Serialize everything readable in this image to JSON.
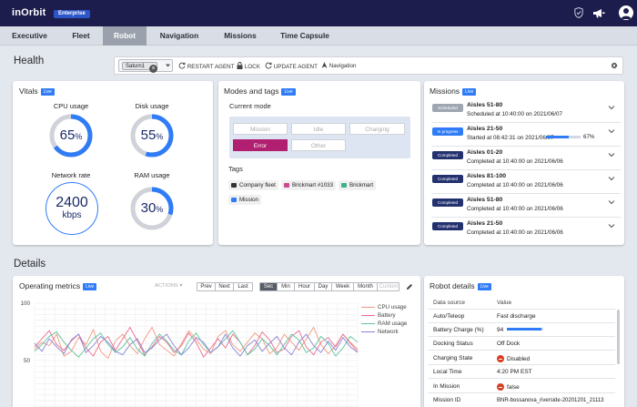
{
  "app": {
    "logo": "inOrbit",
    "edition": "Enterprise"
  },
  "topbar_icons": [
    "shield-icon",
    "megaphone-icon",
    "user-avatar-icon"
  ],
  "tabs": [
    {
      "label": "Executive",
      "active": false
    },
    {
      "label": "Fleet",
      "active": false
    },
    {
      "label": "Robot",
      "active": true
    },
    {
      "label": "Navigation",
      "active": false
    },
    {
      "label": "Missions",
      "active": false
    },
    {
      "label": "Time Capsule",
      "active": false
    }
  ],
  "health": {
    "heading": "Health"
  },
  "toolbar": {
    "robot_chip": "Saturn1",
    "restart_label": "RESTART AGENT",
    "lock_label": "LOCK",
    "update_label": "UPDATE AGENT",
    "navigation_label": "Navigation"
  },
  "vitals": {
    "title": "Vitals",
    "live": "Live",
    "cpu_label": "CPU usage",
    "cpu_value": "65",
    "cpu_percent": 65,
    "disk_label": "Disk usage",
    "disk_value": "55",
    "disk_percent": 55,
    "network_label": "Network rate",
    "network_value": "2400",
    "network_unit": "kbps",
    "ram_label": "RAM usage",
    "ram_value": "30",
    "ram_percent": 30,
    "percent_sign": "%"
  },
  "modes": {
    "title": "Modes and tags",
    "live": "Live",
    "current_mode_label": "Current mode",
    "buttons": [
      {
        "label": "Mission",
        "selected": false
      },
      {
        "label": "Idle",
        "selected": false
      },
      {
        "label": "Charging",
        "selected": false
      },
      {
        "label": "Error",
        "selected": true
      },
      {
        "label": "Other",
        "selected": false
      }
    ],
    "tags_label": "Tags",
    "tags": [
      {
        "label": "Company fleet",
        "icon": "car-icon"
      },
      {
        "label": "Brickmart #1033",
        "icon": "store-icon"
      },
      {
        "label": "Brickmart",
        "icon": "tag-icon"
      },
      {
        "label": "Mission",
        "icon": "robot-icon"
      }
    ]
  },
  "missions": {
    "title": "Missions",
    "live": "Live",
    "items": [
      {
        "status": "Scheduled",
        "name": "Aisles 51-80",
        "time": "Scheduled at 10:40:00 on 2021/06/07",
        "color": "#9fa6b2"
      },
      {
        "status": "In progress",
        "name": "Aisles 21-50",
        "time": "Started at 08:42:31 on 2021/06/07",
        "color": "#2f7cf6",
        "progress": 67,
        "progress_label": "67%"
      },
      {
        "status": "Completed",
        "name": "Aisles 01-20",
        "time": "Completed at 10:40:00 on 2021/06/06",
        "color": "#23316f"
      },
      {
        "status": "Completed",
        "name": "Aisles 81-100",
        "time": "Completed at 10:40:00 on 2021/06/06",
        "color": "#23316f"
      },
      {
        "status": "Completed",
        "name": "Aisles 51-80",
        "time": "Completed at 10:40:00 on 2021/06/06",
        "color": "#23316f"
      },
      {
        "status": "Completed",
        "name": "Aisles 21-50",
        "time": "Completed at 10:40:00 on 2021/06/06",
        "color": "#23316f"
      }
    ]
  },
  "details": {
    "heading": "Details"
  },
  "metrics": {
    "title": "Operating metrics",
    "live": "Live",
    "actions_label": "ACTIONS",
    "nav": [
      "Prev",
      "Next",
      "Last"
    ],
    "ranges": [
      {
        "label": "Sec",
        "selected": true,
        "disabled": false
      },
      {
        "label": "Min",
        "selected": false,
        "disabled": false
      },
      {
        "label": "Hour",
        "selected": false,
        "disabled": false
      },
      {
        "label": "Day",
        "selected": false,
        "disabled": false
      },
      {
        "label": "Week",
        "selected": false,
        "disabled": false
      },
      {
        "label": "Month",
        "selected": false,
        "disabled": false
      },
      {
        "label": "Custom",
        "selected": false,
        "disabled": true
      }
    ]
  },
  "chart_data": {
    "type": "line",
    "ylim": [
      0,
      100
    ],
    "y_ticks": [
      100,
      50
    ],
    "legend_position": "top-right",
    "series": [
      {
        "name": "CPU usage",
        "color": "#f09a82",
        "values": [
          60,
          66,
          63,
          73,
          54,
          58,
          70,
          64,
          77,
          58,
          52,
          67,
          73,
          63,
          56,
          69,
          79,
          64,
          59,
          54,
          65,
          76,
          69,
          60,
          56,
          71,
          76,
          64,
          58,
          66,
          74,
          69,
          56,
          61,
          73,
          66,
          59,
          69,
          79,
          64,
          56,
          63,
          73,
          66,
          60
        ]
      },
      {
        "name": "Battery",
        "color": "#ea6d8f",
        "values": [
          62,
          69,
          76,
          64,
          59,
          67,
          73,
          61,
          54,
          66,
          71,
          59,
          69,
          79,
          67,
          55,
          62,
          71,
          66,
          57,
          63,
          74,
          66,
          53,
          61,
          69,
          61,
          73,
          66,
          55,
          63,
          75,
          68,
          57,
          60,
          71,
          76,
          62,
          55,
          66,
          70,
          62,
          73,
          65,
          58
        ]
      },
      {
        "name": "RAM usage",
        "color": "#5cc59a",
        "values": [
          58,
          64,
          71,
          75,
          66,
          59,
          53,
          61,
          69,
          74,
          64,
          57,
          62,
          70,
          60,
          54,
          65,
          73,
          67,
          59,
          55,
          67,
          74,
          64,
          57,
          62,
          69,
          76,
          66,
          55,
          60,
          69,
          63,
          55,
          64,
          73,
          68,
          57,
          61,
          71,
          65,
          54,
          61,
          71,
          66
        ]
      },
      {
        "name": "Network",
        "color": "#8a83d6",
        "values": [
          65,
          58,
          69,
          62,
          56,
          68,
          73,
          57,
          63,
          71,
          66,
          58,
          55,
          64,
          69,
          57,
          61,
          68,
          73,
          63,
          55,
          61,
          70,
          66,
          57,
          62,
          73,
          61,
          54,
          63,
          68,
          58,
          65,
          71,
          61,
          55,
          66,
          73,
          63,
          57,
          67,
          59,
          70,
          62,
          57
        ]
      }
    ]
  },
  "robot_details": {
    "title": "Robot details",
    "live": "Live",
    "col_source": "Data source",
    "col_value": "Value",
    "rows": [
      {
        "source": "Auto/Teleop",
        "value": "Fast discharge"
      },
      {
        "source": "Battery Charge (%)",
        "value": "94",
        "bar": 94
      },
      {
        "source": "Docking Status",
        "value": "Off Dock"
      },
      {
        "source": "Charging State",
        "value": "Disabled",
        "icon": "stop-icon"
      },
      {
        "source": "Local Time",
        "value": "4:20 PM EST"
      },
      {
        "source": "In Mission",
        "value": "false",
        "icon": "stop-icon"
      },
      {
        "source": "Mission ID",
        "value": "BNR-bossanova_riverside-20201201_21113"
      }
    ]
  },
  "colors": {
    "navy": "#1c1c4d",
    "accent": "#2f7cf6",
    "error": "#b11f70"
  }
}
